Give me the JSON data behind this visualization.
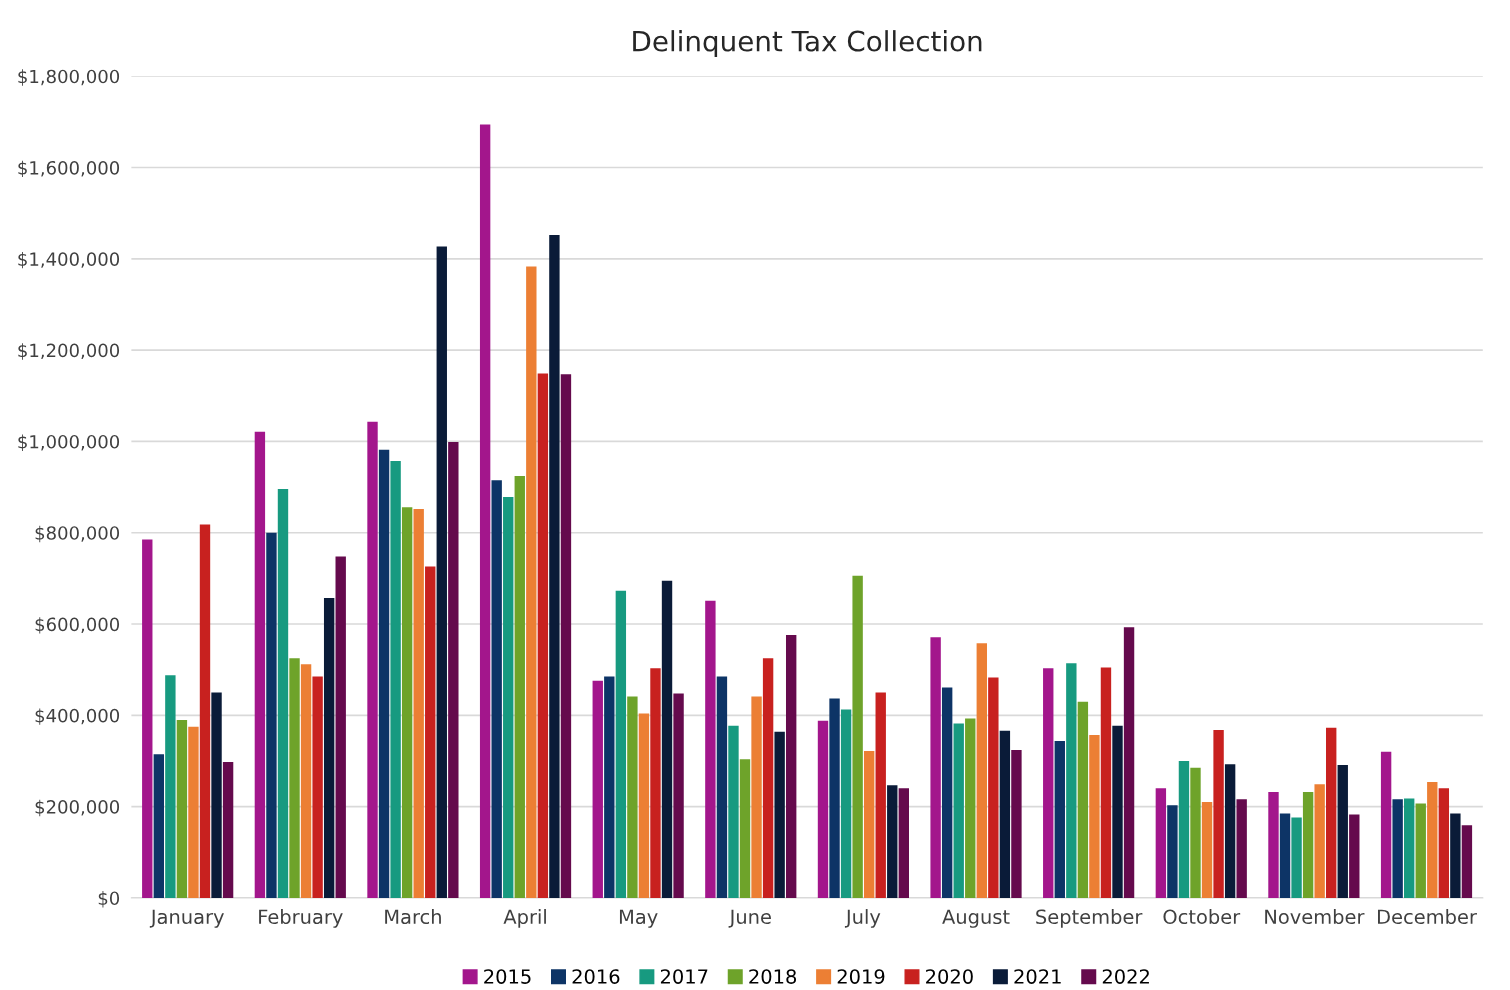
{
  "chart_data": {
    "type": "bar",
    "title": "Delinquent Tax Collection",
    "categories": [
      "January",
      "February",
      "March",
      "April",
      "May",
      "June",
      "July",
      "August",
      "September",
      "October",
      "November",
      "December"
    ],
    "series": [
      {
        "name": "2015",
        "color": "#a3168c",
        "values": [
          785000,
          1021000,
          1043000,
          1694000,
          476000,
          651000,
          388000,
          571000,
          503000,
          240000,
          232000,
          320000
        ]
      },
      {
        "name": "2016",
        "color": "#0d3466",
        "values": [
          315000,
          800000,
          982000,
          915000,
          485000,
          485000,
          437000,
          461000,
          344000,
          203000,
          185000,
          216000
        ]
      },
      {
        "name": "2017",
        "color": "#179a80",
        "values": [
          488000,
          896000,
          957000,
          878000,
          673000,
          377000,
          413000,
          382000,
          514000,
          300000,
          176000,
          218000
        ]
      },
      {
        "name": "2018",
        "color": "#6ea32a",
        "values": [
          390000,
          525000,
          856000,
          924000,
          441000,
          304000,
          706000,
          393000,
          430000,
          285000,
          232000,
          207000
        ]
      },
      {
        "name": "2019",
        "color": "#ec7f34",
        "values": [
          375000,
          512000,
          852000,
          1383000,
          404000,
          441000,
          322000,
          558000,
          357000,
          210000,
          249000,
          254000
        ]
      },
      {
        "name": "2020",
        "color": "#c8211f",
        "values": [
          818000,
          485000,
          726000,
          1149000,
          503000,
          525000,
          450000,
          483000,
          505000,
          368000,
          373000,
          240000
        ]
      },
      {
        "name": "2021",
        "color": "#0a1b38",
        "values": [
          450000,
          657000,
          1427000,
          1452000,
          695000,
          364000,
          247000,
          366000,
          377000,
          293000,
          291000,
          185000
        ]
      },
      {
        "name": "2022",
        "color": "#650a4d",
        "values": [
          298000,
          748000,
          999000,
          1147000,
          448000,
          576000,
          240000,
          324000,
          593000,
          216000,
          183000,
          159000
        ]
      }
    ],
    "ylim": [
      0,
      1800000
    ],
    "yticks": [
      {
        "value": 0,
        "label": "$0"
      },
      {
        "value": 200000,
        "label": "$200,000"
      },
      {
        "value": 400000,
        "label": "$400,000"
      },
      {
        "value": 600000,
        "label": "$600,000"
      },
      {
        "value": 800000,
        "label": "$800,000"
      },
      {
        "value": 1000000,
        "label": "$1,000,000"
      },
      {
        "value": 1200000,
        "label": "$1,200,000"
      },
      {
        "value": 1400000,
        "label": "$1,400,000"
      },
      {
        "value": 1600000,
        "label": "$1,600,000"
      },
      {
        "value": 1800000,
        "label": "$1,800,000"
      }
    ],
    "grid": "y",
    "legend": "bottom"
  }
}
